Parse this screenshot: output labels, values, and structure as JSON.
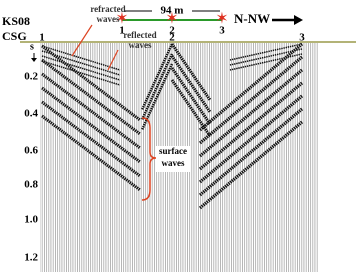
{
  "header": {
    "line": "KS08",
    "gather": "CSG",
    "distance": "94 m",
    "direction": "N-NW"
  },
  "sources": [
    "1",
    "2",
    "3"
  ],
  "traces": [
    "1",
    "2",
    "3"
  ],
  "time_axis": {
    "unit": "s",
    "ticks": [
      "0.2",
      "0.4",
      "0.6",
      "0.8",
      "1.0",
      "1.2"
    ]
  },
  "annotations": {
    "refracted": [
      "refracted",
      "waves"
    ],
    "reflected": [
      "reflected",
      "waves"
    ],
    "surface": [
      "surface",
      "waves"
    ]
  }
}
